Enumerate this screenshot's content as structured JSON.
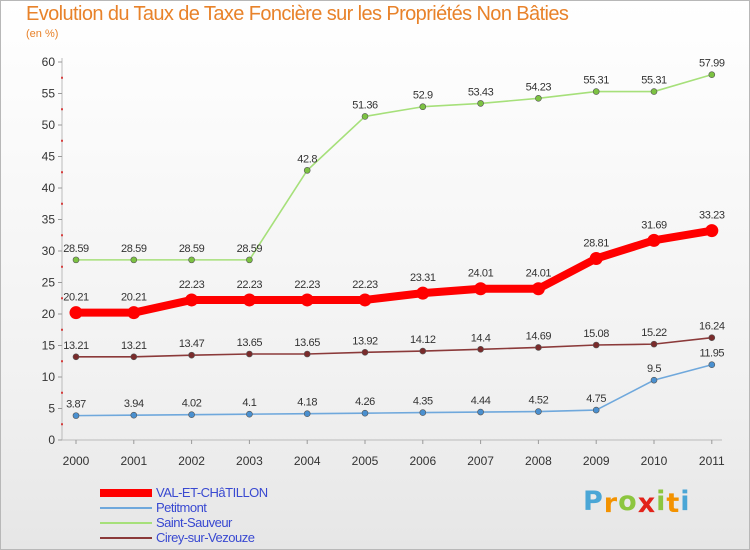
{
  "title": "Evolution du Taux de Taxe Foncière sur les Propriétés Non Bâties",
  "unit_label": "(en %)",
  "logo": {
    "letters": [
      "P",
      "r",
      "o",
      "x",
      "i",
      "t",
      "i"
    ],
    "colors": [
      "#4aa6d6",
      "#f39200",
      "#8cc63f",
      "#e2231a",
      "#8cc63f",
      "#f39200",
      "#4aa6d6"
    ]
  },
  "chart_data": {
    "type": "line",
    "title": "Evolution du Taux de Taxe Foncière sur les Propriétés Non Bâties",
    "ylabel": "(en %)",
    "xlabel": "",
    "ylim": [
      0,
      60
    ],
    "yticks": [
      0,
      5,
      10,
      15,
      20,
      25,
      30,
      35,
      40,
      45,
      50,
      55,
      60
    ],
    "grid": false,
    "legend_position": "bottom-left",
    "x": [
      "2000",
      "2001",
      "2002",
      "2003",
      "2004",
      "2005",
      "2006",
      "2007",
      "2008",
      "2009",
      "2010",
      "2011"
    ],
    "series": [
      {
        "name": "Saint-Sauveur",
        "color": "#a6e07a",
        "marker": "#7cc242",
        "emphasis": false,
        "values": [
          28.59,
          28.59,
          28.59,
          28.59,
          42.8,
          51.36,
          52.9,
          53.43,
          54.23,
          55.31,
          55.31,
          57.99
        ],
        "labels": [
          "28.59",
          "28.59",
          "28.59",
          "28.59",
          "42.8",
          "51.36",
          "52.9",
          "53.43",
          "54.23",
          "55.31",
          "55.31",
          "57.99"
        ]
      },
      {
        "name": "Cirey-sur-Vezouze",
        "color": "#8b3a3a",
        "marker": "#7a2b2b",
        "emphasis": false,
        "values": [
          13.21,
          13.21,
          13.47,
          13.65,
          13.65,
          13.92,
          14.12,
          14.4,
          14.69,
          15.08,
          15.22,
          16.24
        ],
        "labels": [
          "13.21",
          "13.21",
          "13.47",
          "13.65",
          "13.65",
          "13.92",
          "14.12",
          "14.4",
          "14.69",
          "15.08",
          "15.22",
          "16.24"
        ]
      },
      {
        "name": "Petitmont",
        "color": "#6fa8dc",
        "marker": "#4a90d0",
        "emphasis": false,
        "values": [
          3.87,
          3.94,
          4.02,
          4.1,
          4.18,
          4.26,
          4.35,
          4.44,
          4.52,
          4.75,
          9.5,
          11.95
        ],
        "labels": [
          "3.87",
          "3.94",
          "4.02",
          "4.1",
          "4.18",
          "4.26",
          "4.35",
          "4.44",
          "4.52",
          "4.75",
          "9.5",
          "11.95"
        ]
      },
      {
        "name": "VAL-ET-CHÂTILLON",
        "color": "#ff0000",
        "marker": "#ff0000",
        "emphasis": true,
        "values": [
          20.21,
          20.21,
          22.23,
          22.23,
          22.23,
          22.23,
          23.31,
          24.01,
          24.01,
          28.81,
          31.69,
          33.23
        ],
        "labels": [
          "20.21",
          "20.21",
          "22.23",
          "22.23",
          "22.23",
          "22.23",
          "23.31",
          "24.01",
          "24.01",
          "28.81",
          "31.69",
          "33.23"
        ]
      }
    ],
    "legend": [
      {
        "name": "VAL-ET-CHâTILLON",
        "color": "#ff0000",
        "emphasis": true
      },
      {
        "name": "Petitmont",
        "color": "#6fa8dc",
        "emphasis": false
      },
      {
        "name": "Saint-Sauveur",
        "color": "#a6e07a",
        "emphasis": false
      },
      {
        "name": "Cirey-sur-Vezouze",
        "color": "#8b3a3a",
        "emphasis": false
      }
    ]
  }
}
